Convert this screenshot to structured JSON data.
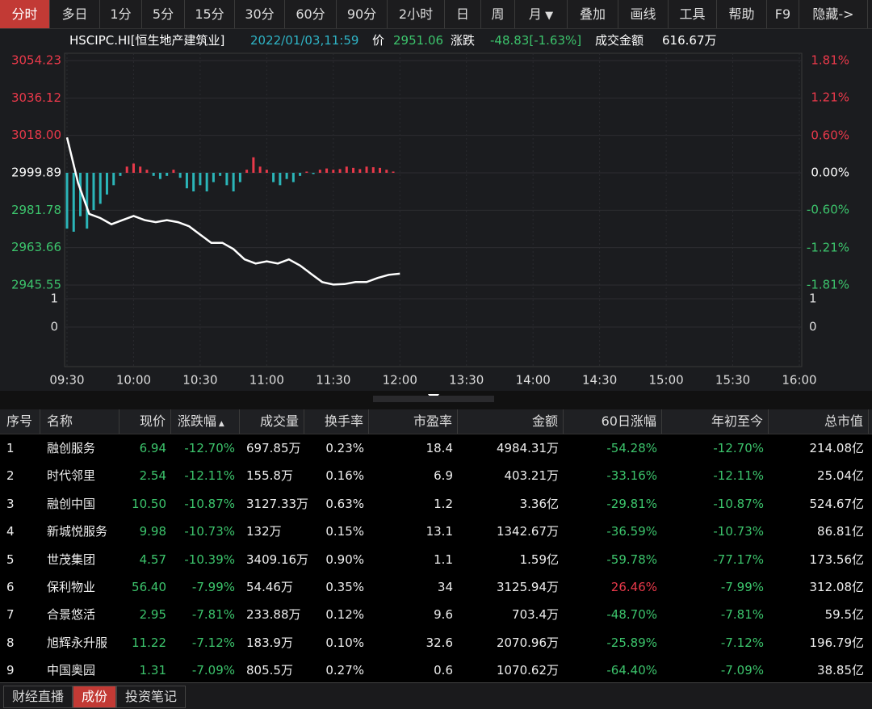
{
  "toolbar": {
    "tabs": [
      "分时",
      "多日",
      "1分",
      "5分",
      "15分",
      "30分",
      "60分",
      "90分",
      "2小时",
      "日",
      "周",
      "月",
      "叠加",
      "画线",
      "工具",
      "帮助",
      "F9",
      "隐藏->"
    ],
    "active": 0
  },
  "info": {
    "code": "HSCIPC.HI[恒生地产建筑业]",
    "time": "2022/01/03,11:59",
    "price_label": "价",
    "price": "2951.06",
    "change_label": "涨跌",
    "change": "-48.83[-1.63%]",
    "amount_label": "成交金额",
    "amount": "616.67万"
  },
  "chart_data": {
    "type": "line",
    "ylim": [
      2945.55,
      3054.23
    ],
    "yticks": [
      {
        "value": 3054.23,
        "label": "3054.23"
      },
      {
        "value": 3036.12,
        "label": "3036.12"
      },
      {
        "value": 3018.0,
        "label": "3018.00"
      },
      {
        "value": 2999.89,
        "label": "2999.89"
      },
      {
        "value": 2981.78,
        "label": "2981.78"
      },
      {
        "value": 2963.66,
        "label": "2963.66"
      },
      {
        "value": 2945.55,
        "label": "2945.55"
      }
    ],
    "y2lim": [
      -1.81,
      1.81
    ],
    "y2ticks": [
      {
        "value": 1.81,
        "label": "1.81%"
      },
      {
        "value": 1.21,
        "label": "1.21%"
      },
      {
        "value": 0.6,
        "label": "0.60%"
      },
      {
        "value": 0,
        "label": "0.00%"
      },
      {
        "value": -0.6,
        "label": "-0.60%"
      },
      {
        "value": -1.21,
        "label": "-1.21%"
      },
      {
        "value": -1.81,
        "label": "-1.81%"
      }
    ],
    "volume_ticks": [
      1,
      0
    ],
    "xticks": [
      "09:30",
      "10:00",
      "10:30",
      "11:00",
      "11:30",
      "12:00",
      "13:30",
      "14:00",
      "14:30",
      "15:00",
      "15:30",
      "16:00"
    ],
    "series": [
      {
        "color": "#ffffff",
        "x": [
          "09:30",
          "09:35",
          "09:40",
          "09:45",
          "09:50",
          "09:55",
          "10:00",
          "10:05",
          "10:10",
          "10:15",
          "10:20",
          "10:25",
          "10:30",
          "10:35",
          "10:40",
          "10:45",
          "10:50",
          "10:55",
          "11:00",
          "11:05",
          "11:10",
          "11:15",
          "11:20",
          "11:25",
          "11:30",
          "11:35",
          "11:40",
          "11:45",
          "11:50",
          "11:55",
          "12:00"
        ],
        "values": [
          3017,
          2995,
          2980,
          2978,
          2975,
          2977,
          2979,
          2977,
          2976,
          2977,
          2976,
          2974,
          2970,
          2966,
          2966,
          2963,
          2958,
          2956,
          2957,
          2956,
          2958,
          2955,
          2951,
          2947,
          2945.8,
          2946,
          2947,
          2947,
          2949,
          2950.5,
          2951.06
        ]
      },
      {
        "type": "bar",
        "axis": "y2",
        "color": "#e8394a",
        "negative_color": "#2bb5b8",
        "x": [
          "09:30",
          "09:33",
          "09:36",
          "09:39",
          "09:42",
          "09:45",
          "09:48",
          "09:51",
          "09:54",
          "09:57",
          "10:00",
          "10:03",
          "10:06",
          "10:09",
          "10:12",
          "10:15",
          "10:18",
          "10:21",
          "10:24",
          "10:27",
          "10:30",
          "10:33",
          "10:36",
          "10:39",
          "10:42",
          "10:45",
          "10:48",
          "10:51",
          "10:54",
          "10:57",
          "11:00",
          "11:03",
          "11:06",
          "11:09",
          "11:12",
          "11:15",
          "11:18",
          "11:21",
          "11:24",
          "11:27",
          "11:30",
          "11:33",
          "11:36",
          "11:39",
          "11:42",
          "11:45",
          "11:48",
          "11:51",
          "11:54",
          "11:57"
        ],
        "values": [
          -0.9,
          -0.95,
          -0.7,
          -0.9,
          -0.6,
          -0.5,
          -0.35,
          -0.2,
          -0.05,
          0.1,
          0.15,
          0.1,
          0.05,
          -0.05,
          -0.1,
          -0.05,
          0.05,
          -0.08,
          -0.25,
          -0.3,
          -0.2,
          -0.3,
          -0.15,
          -0.05,
          -0.2,
          -0.3,
          -0.15,
          0.05,
          0.25,
          0.1,
          0.05,
          -0.15,
          -0.2,
          -0.1,
          -0.15,
          -0.05,
          0.02,
          -0.02,
          0.05,
          0.07,
          0.05,
          0.06,
          0.1,
          0.08,
          0.06,
          0.1,
          0.09,
          0.08,
          0.05,
          0.02
        ]
      }
    ]
  },
  "table": {
    "header": [
      "序号",
      "名称",
      "现价",
      "涨跌幅",
      "成交量",
      "换手率",
      "市盈率",
      "金额",
      "60日涨幅",
      "年初至今",
      "总市值"
    ],
    "rows": [
      [
        "1",
        "融创服务",
        "6.94",
        "-12.70%",
        "697.85万",
        "0.23%",
        "18.4",
        "4984.31万",
        "-54.28%",
        "-12.70%",
        "214.08亿"
      ],
      [
        "2",
        "时代邻里",
        "2.54",
        "-12.11%",
        "155.8万",
        "0.16%",
        "6.9",
        "403.21万",
        "-33.16%",
        "-12.11%",
        "25.04亿"
      ],
      [
        "3",
        "融创中国",
        "10.50",
        "-10.87%",
        "3127.33万",
        "0.63%",
        "1.2",
        "3.36亿",
        "-29.81%",
        "-10.87%",
        "524.67亿"
      ],
      [
        "4",
        "新城悦服务",
        "9.98",
        "-10.73%",
        "132万",
        "0.15%",
        "13.1",
        "1342.67万",
        "-36.59%",
        "-10.73%",
        "86.81亿"
      ],
      [
        "5",
        "世茂集团",
        "4.57",
        "-10.39%",
        "3409.16万",
        "0.90%",
        "1.1",
        "1.59亿",
        "-59.78%",
        "-77.17%",
        "173.56亿"
      ],
      [
        "6",
        "保利物业",
        "56.40",
        "-7.99%",
        "54.46万",
        "0.35%",
        "34",
        "3125.94万",
        "26.46%",
        "-7.99%",
        "312.08亿"
      ],
      [
        "7",
        "合景悠活",
        "2.95",
        "-7.81%",
        "233.88万",
        "0.12%",
        "9.6",
        "703.4万",
        "-48.70%",
        "-7.81%",
        "59.5亿"
      ],
      [
        "8",
        "旭辉永升服",
        "11.22",
        "-7.12%",
        "183.9万",
        "0.10%",
        "32.6",
        "2070.96万",
        "-25.89%",
        "-7.12%",
        "196.79亿"
      ],
      [
        "9",
        "中国奥园",
        "1.31",
        "-7.09%",
        "805.5万",
        "0.27%",
        "0.6",
        "1070.62万",
        "-64.40%",
        "-7.09%",
        "38.85亿"
      ]
    ]
  },
  "bottom_tabs": {
    "tabs": [
      "财经直播",
      "成份",
      "投资笔记"
    ],
    "active": 1
  }
}
